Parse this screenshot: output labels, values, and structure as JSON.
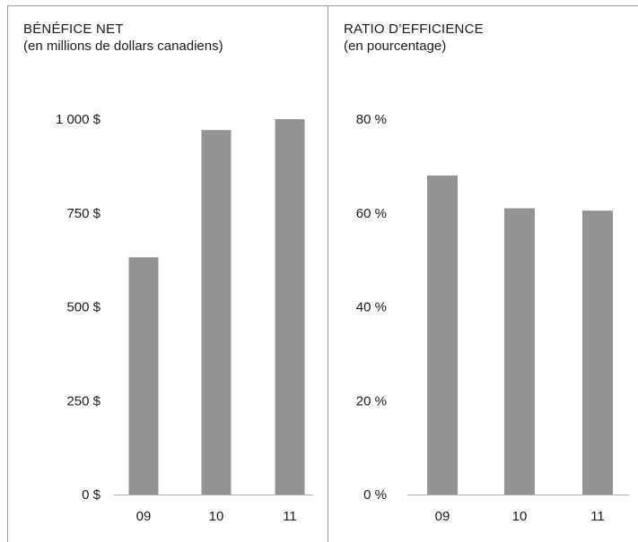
{
  "colors": {
    "bar": "#939393",
    "axis": "#b0b0b0",
    "border": "#9a9a9a"
  },
  "chart_data": [
    {
      "type": "bar",
      "title": "BÉNÉFICE NET",
      "subtitle": "(en millions de dollars canadiens)",
      "categories": [
        "09",
        "10",
        "11"
      ],
      "values": [
        632,
        971,
        1000
      ],
      "ylim": [
        0,
        1000
      ],
      "yticks": [
        0,
        250,
        500,
        750,
        1000
      ],
      "ytick_labels": [
        "0 $",
        "250 $",
        "500 $",
        "750 $",
        "1 000 $"
      ],
      "grid": false,
      "xlabel": "",
      "ylabel": ""
    },
    {
      "type": "bar",
      "title": "RATIO D’EFFICIENCE",
      "subtitle": "(en pourcentage)",
      "categories": [
        "09",
        "10",
        "11"
      ],
      "values": [
        68,
        61,
        60.5
      ],
      "ylim": [
        0,
        80
      ],
      "yticks": [
        0,
        20,
        40,
        60,
        80
      ],
      "ytick_labels": [
        "0 %",
        "20 %",
        "40 %",
        "60 %",
        "80 %"
      ],
      "grid": false,
      "xlabel": "",
      "ylabel": ""
    }
  ]
}
